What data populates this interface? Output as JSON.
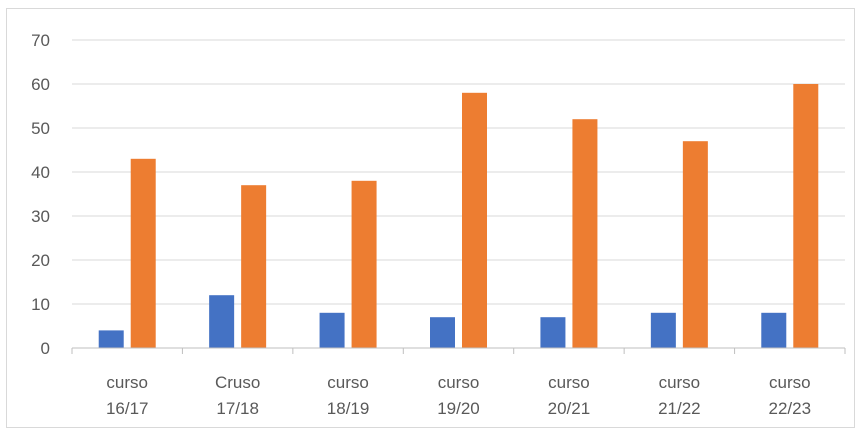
{
  "chart_data": {
    "type": "bar",
    "categories": [
      [
        "curso",
        "16/17"
      ],
      [
        "Cruso",
        "17/18"
      ],
      [
        "curso",
        "18/19"
      ],
      [
        "curso",
        "19/20"
      ],
      [
        "curso",
        "20/21"
      ],
      [
        "curso",
        "21/22"
      ],
      [
        "curso",
        "22/23"
      ]
    ],
    "series": [
      {
        "color": "#4472c4",
        "values": [
          4,
          12,
          8,
          7,
          7,
          8,
          8
        ]
      },
      {
        "color": "#ed7d31",
        "values": [
          43,
          37,
          38,
          58,
          52,
          47,
          60
        ]
      }
    ],
    "title": "",
    "xlabel": "",
    "ylabel": "",
    "ylim": [
      0,
      70
    ],
    "yticks": [
      0,
      10,
      20,
      30,
      40,
      50,
      60,
      70
    ],
    "grid": true,
    "legend": "none"
  }
}
